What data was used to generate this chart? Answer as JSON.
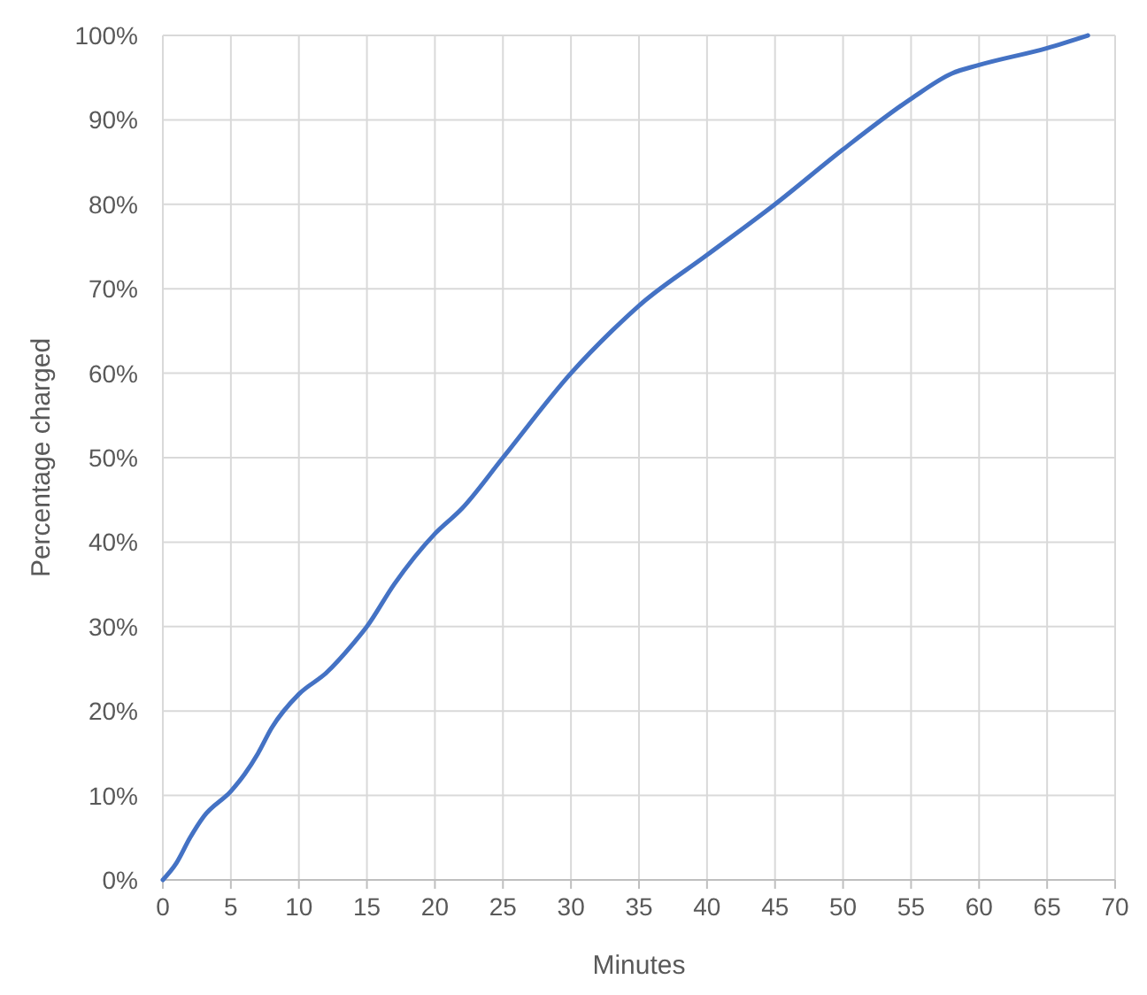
{
  "chart_data": {
    "type": "line",
    "xlabel": "Minutes",
    "ylabel": "Percentage charged",
    "x": [
      0,
      1,
      2,
      3,
      5,
      6,
      7,
      8,
      10,
      12,
      14,
      15,
      17,
      20,
      22,
      25,
      30,
      33,
      35,
      40,
      45,
      50,
      55,
      58,
      60,
      65,
      68
    ],
    "series": [
      {
        "color": "#4472c4",
        "values": [
          0,
          2,
          5,
          7.5,
          10.5,
          12.5,
          15,
          18,
          22,
          24.5,
          28,
          30,
          35,
          41,
          44,
          50,
          60,
          65,
          68,
          74,
          80,
          86.5,
          92.5,
          95.5,
          96.5,
          98.5,
          100
        ]
      }
    ],
    "xlim": [
      0,
      70
    ],
    "xticks": [
      0,
      5,
      10,
      15,
      20,
      25,
      30,
      35,
      40,
      45,
      50,
      55,
      60,
      65,
      70
    ],
    "ylim": [
      0,
      100
    ],
    "yticks": [
      {
        "value": 0,
        "label": "0%"
      },
      {
        "value": 10,
        "label": "10%"
      },
      {
        "value": 20,
        "label": "20%"
      },
      {
        "value": 30,
        "label": "30%"
      },
      {
        "value": 40,
        "label": "40%"
      },
      {
        "value": 50,
        "label": "50%"
      },
      {
        "value": 60,
        "label": "60%"
      },
      {
        "value": 70,
        "label": "70%"
      },
      {
        "value": 80,
        "label": "80%"
      },
      {
        "value": 90,
        "label": "90%"
      },
      {
        "value": 100,
        "label": "100%"
      }
    ],
    "grid": true,
    "marker": "none",
    "line_style": "solid"
  }
}
